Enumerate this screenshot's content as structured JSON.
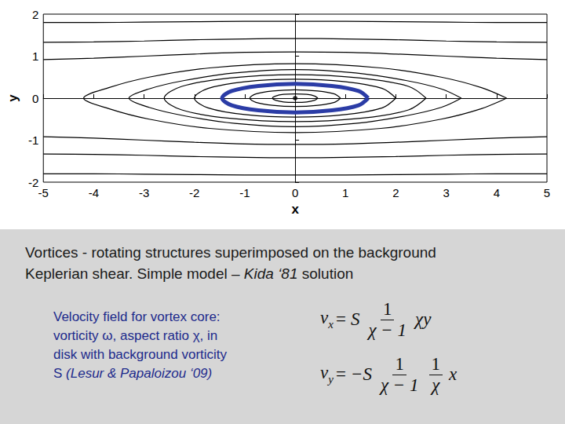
{
  "chart_data": {
    "type": "line",
    "xlabel": "x",
    "ylabel": "y",
    "xlim": [
      -5,
      5
    ],
    "xticks": [
      -5,
      -4,
      -3,
      -2,
      -1,
      0,
      1,
      2,
      3,
      4,
      5
    ],
    "ylim": [
      -2,
      2
    ],
    "yticks": [
      -2,
      -1,
      0,
      1,
      2
    ],
    "grid": false,
    "series": [
      {
        "color": "#000000",
        "values": [
          [
            0.45,
            0
          ],
          [
            0.39,
            0.05
          ],
          [
            0.23,
            0.09
          ],
          [
            0,
            0.1
          ],
          [
            -0.23,
            0.09
          ],
          [
            -0.39,
            0.05
          ],
          [
            -0.45,
            0
          ],
          [
            -0.39,
            -0.05
          ],
          [
            -0.23,
            -0.09
          ],
          [
            0,
            -0.1
          ],
          [
            0.23,
            -0.09
          ],
          [
            0.39,
            -0.05
          ],
          [
            0.45,
            0
          ]
        ]
      },
      {
        "color": "#000000",
        "values": [
          [
            0.9,
            0
          ],
          [
            0.78,
            0.1
          ],
          [
            0.45,
            0.17
          ],
          [
            0,
            0.2
          ],
          [
            -0.45,
            0.17
          ],
          [
            -0.78,
            0.1
          ],
          [
            -0.9,
            0
          ],
          [
            -0.78,
            -0.1
          ],
          [
            -0.45,
            -0.17
          ],
          [
            0,
            -0.2
          ],
          [
            0.45,
            -0.17
          ],
          [
            0.78,
            -0.1
          ],
          [
            0.9,
            0
          ]
        ]
      },
      {
        "color": "#2b3ca6",
        "values": [
          [
            1.45,
            0
          ],
          [
            1.26,
            0.17
          ],
          [
            0.73,
            0.29
          ],
          [
            0,
            0.34
          ],
          [
            -0.73,
            0.29
          ],
          [
            -1.26,
            0.17
          ],
          [
            -1.45,
            0
          ],
          [
            -1.26,
            -0.17
          ],
          [
            -0.73,
            -0.29
          ],
          [
            0,
            -0.34
          ],
          [
            0.73,
            -0.29
          ],
          [
            1.26,
            -0.17
          ],
          [
            1.45,
            0
          ]
        ]
      },
      {
        "color": "#000000",
        "values": [
          [
            2.0,
            0
          ],
          [
            1.73,
            0.23
          ],
          [
            1.0,
            0.39
          ],
          [
            0,
            0.45
          ],
          [
            -1.0,
            0.39
          ],
          [
            -1.73,
            0.23
          ],
          [
            -2.0,
            0
          ],
          [
            -1.73,
            -0.23
          ],
          [
            -1.0,
            -0.39
          ],
          [
            0,
            -0.45
          ],
          [
            1.0,
            -0.39
          ],
          [
            1.73,
            -0.23
          ],
          [
            2.0,
            0
          ]
        ]
      },
      {
        "color": "#000000",
        "values": [
          [
            2.6,
            0
          ],
          [
            2.25,
            0.28
          ],
          [
            1.3,
            0.48
          ],
          [
            0,
            0.56
          ],
          [
            -1.3,
            0.48
          ],
          [
            -2.25,
            0.28
          ],
          [
            -2.6,
            0
          ],
          [
            -2.25,
            -0.28
          ],
          [
            -1.3,
            -0.48
          ],
          [
            0,
            -0.56
          ],
          [
            1.3,
            -0.48
          ],
          [
            2.25,
            -0.28
          ],
          [
            2.6,
            0
          ]
        ]
      },
      {
        "color": "#000000",
        "values": [
          [
            3.3,
            0
          ],
          [
            2.9,
            0.22
          ],
          [
            2.2,
            0.42
          ],
          [
            1.2,
            0.6
          ],
          [
            0,
            0.68
          ],
          [
            -1.2,
            0.6
          ],
          [
            -2.2,
            0.42
          ],
          [
            -2.9,
            0.22
          ],
          [
            -3.3,
            0
          ],
          [
            -2.9,
            -0.22
          ],
          [
            -2.2,
            -0.42
          ],
          [
            -1.2,
            -0.6
          ],
          [
            0,
            -0.68
          ],
          [
            1.2,
            -0.6
          ],
          [
            2.2,
            -0.42
          ],
          [
            2.9,
            -0.22
          ],
          [
            3.3,
            0
          ]
        ]
      },
      {
        "color": "#000000",
        "values": [
          [
            4.2,
            0
          ],
          [
            3.7,
            0.25
          ],
          [
            2.9,
            0.5
          ],
          [
            1.7,
            0.72
          ],
          [
            0,
            0.82
          ],
          [
            -1.7,
            0.72
          ],
          [
            -2.9,
            0.5
          ],
          [
            -3.7,
            0.25
          ],
          [
            -4.2,
            0
          ],
          [
            -3.7,
            -0.25
          ],
          [
            -2.9,
            -0.5
          ],
          [
            -1.7,
            -0.72
          ],
          [
            0,
            -0.82
          ],
          [
            1.7,
            -0.72
          ],
          [
            2.9,
            -0.5
          ],
          [
            3.7,
            -0.25
          ],
          [
            4.2,
            0
          ]
        ]
      },
      {
        "color": "#000000",
        "values": [
          [
            -5,
            0.92
          ],
          [
            -4,
            0.95
          ],
          [
            -3,
            1.0
          ],
          [
            -2,
            1.05
          ],
          [
            -1,
            1.09
          ],
          [
            0,
            1.1
          ],
          [
            1,
            1.09
          ],
          [
            2,
            1.05
          ],
          [
            3,
            1.0
          ],
          [
            4,
            0.95
          ],
          [
            5,
            0.92
          ]
        ]
      },
      {
        "color": "#000000",
        "values": [
          [
            -5,
            1.33
          ],
          [
            -4,
            1.34
          ],
          [
            -3,
            1.36
          ],
          [
            -2,
            1.39
          ],
          [
            -1,
            1.41
          ],
          [
            0,
            1.42
          ],
          [
            1,
            1.41
          ],
          [
            2,
            1.39
          ],
          [
            3,
            1.36
          ],
          [
            4,
            1.34
          ],
          [
            5,
            1.33
          ]
        ]
      },
      {
        "color": "#000000",
        "values": [
          [
            -5,
            1.8
          ],
          [
            -4,
            1.8
          ],
          [
            -3,
            1.81
          ],
          [
            -2,
            1.82
          ],
          [
            -1,
            1.83
          ],
          [
            0,
            1.83
          ],
          [
            1,
            1.83
          ],
          [
            2,
            1.82
          ],
          [
            3,
            1.81
          ],
          [
            4,
            1.8
          ],
          [
            5,
            1.8
          ]
        ]
      },
      {
        "color": "#000000",
        "values": [
          [
            -5,
            -0.92
          ],
          [
            -4,
            -0.95
          ],
          [
            -3,
            -1.0
          ],
          [
            -2,
            -1.05
          ],
          [
            -1,
            -1.09
          ],
          [
            0,
            -1.1
          ],
          [
            1,
            -1.09
          ],
          [
            2,
            -1.05
          ],
          [
            3,
            -1.0
          ],
          [
            4,
            -0.95
          ],
          [
            5,
            -0.92
          ]
        ]
      },
      {
        "color": "#000000",
        "values": [
          [
            -5,
            -1.33
          ],
          [
            -4,
            -1.34
          ],
          [
            -3,
            -1.36
          ],
          [
            -2,
            -1.39
          ],
          [
            -1,
            -1.41
          ],
          [
            0,
            -1.42
          ],
          [
            1,
            -1.41
          ],
          [
            2,
            -1.39
          ],
          [
            3,
            -1.36
          ],
          [
            4,
            -1.34
          ],
          [
            5,
            -1.33
          ]
        ]
      },
      {
        "color": "#000000",
        "values": [
          [
            -5,
            -1.8
          ],
          [
            -4,
            -1.8
          ],
          [
            -3,
            -1.81
          ],
          [
            -2,
            -1.82
          ],
          [
            -1,
            -1.83
          ],
          [
            0,
            -1.83
          ],
          [
            1,
            -1.83
          ],
          [
            2,
            -1.82
          ],
          [
            3,
            -1.81
          ],
          [
            4,
            -1.8
          ],
          [
            5,
            -1.8
          ]
        ]
      },
      {
        "type": "scatter",
        "marker": "circle",
        "color": "#000000",
        "values": [
          [
            0,
            0
          ]
        ]
      }
    ]
  },
  "caption": [
    [
      {
        "text": "Vortices - rotating structures superimposed on the background"
      }
    ],
    [
      {
        "text": "Keplerian shear. Simple model – "
      },
      {
        "text": "Kida ‘81",
        "italic": true
      },
      {
        "text": " solution"
      }
    ]
  ],
  "note": [
    [
      {
        "text": "Velocity field for vortex core:"
      }
    ],
    [
      {
        "text": "vorticity ω, aspect ratio χ, in"
      }
    ],
    [
      {
        "text": "disk with background vorticity"
      }
    ],
    [
      {
        "text": "S "
      },
      {
        "text": "(Lesur & Papaloizou ‘09)",
        "italic": true
      }
    ]
  ],
  "equations": [
    {
      "lhs": "v",
      "sub": "x",
      "eq": "=",
      "terms": [
        {
          "text": "S"
        },
        {
          "frac": [
            "1",
            "χ − 1"
          ]
        },
        {
          "text": "χy"
        }
      ]
    },
    {
      "lhs": "v",
      "sub": "y",
      "eq": "=",
      "terms": [
        {
          "text": "−S"
        },
        {
          "frac": [
            "1",
            "χ − 1"
          ]
        },
        {
          "frac": [
            "1",
            "χ"
          ]
        },
        {
          "text": "x"
        }
      ]
    }
  ]
}
